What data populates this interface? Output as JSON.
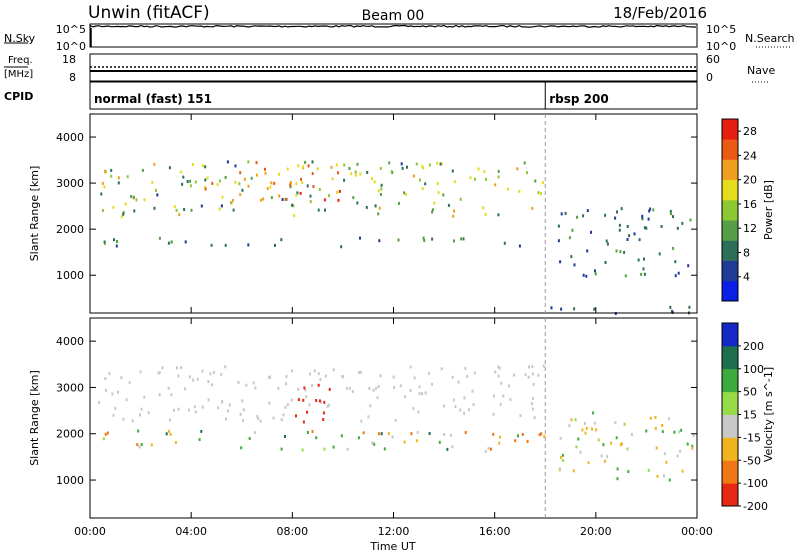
{
  "header": {
    "station": "Unwin (fitACF)",
    "beam": "Beam 00",
    "date": "18/Feb/2016"
  },
  "panel_nsky": {
    "label": "N.Sky",
    "right_label": "N.Search",
    "left_ticks": [
      "10^5",
      "10^0"
    ],
    "right_ticks": [
      "10^5",
      "10^0"
    ]
  },
  "panel_freq": {
    "left_label_1": "Freq.",
    "left_label_2": "[MHz]",
    "right_label": "Nave",
    "left_ticks": [
      "18",
      "8"
    ],
    "right_ticks": [
      "60",
      "0"
    ]
  },
  "panel_cpid": {
    "label": "CPID",
    "modes": [
      {
        "name": "normal (fast) 151",
        "start_hour": 0
      },
      {
        "name": "rbsp 200",
        "start_hour": 18
      }
    ]
  },
  "chart_data": [
    {
      "type": "heatmap",
      "title": "Power",
      "ylabel": "Slant Range [km]",
      "xlabel": "Time UT",
      "ylim": [
        180,
        4500
      ],
      "yticks": [
        "1000",
        "2000",
        "3000",
        "4000"
      ],
      "xticks": [
        "00:00",
        "04:00",
        "08:00",
        "12:00",
        "16:00",
        "20:00",
        "00:00"
      ],
      "x_range_hours": [
        0,
        24
      ],
      "colorbar": {
        "label": "Power [dB]",
        "ticks": [
          "4",
          "8",
          "12",
          "16",
          "20",
          "24",
          "28"
        ],
        "range": [
          0,
          30
        ],
        "colors": [
          "#0a1ee6",
          "#1e3c96",
          "#2d6e5a",
          "#55a046",
          "#8cc832",
          "#e6dc1e",
          "#f0a01e",
          "#eb5a14",
          "#e61e0f"
        ]
      },
      "features": [
        {
          "name": "upper echo band",
          "t": [
            0.3,
            17.9
          ],
          "range_km": [
            2300,
            3500
          ],
          "power_db": [
            6,
            22
          ]
        },
        {
          "name": "strong echo arc",
          "t": [
            4.5,
            10.2
          ],
          "range_km": [
            2650,
            3500
          ],
          "power_db": [
            18,
            28
          ]
        },
        {
          "name": "near range band",
          "t": [
            0.5,
            18
          ],
          "range_km": [
            1650,
            1850
          ],
          "power_db": [
            4,
            14
          ]
        },
        {
          "name": "descending echoes",
          "t": [
            18.5,
            23.9
          ],
          "range_km": [
            1000,
            2500
          ],
          "power_db": [
            4,
            12
          ]
        },
        {
          "name": "ground clutter",
          "t": [
            18,
            24
          ],
          "range_km": [
            180,
            400
          ],
          "power_db": [
            4,
            10
          ]
        }
      ]
    },
    {
      "type": "heatmap",
      "title": "Velocity",
      "ylabel": "Slant Range [km]",
      "xlabel": "Time UT",
      "ylim": [
        180,
        4500
      ],
      "yticks": [
        "1000",
        "2000",
        "3000",
        "4000"
      ],
      "xticks": [
        "00:00",
        "04:00",
        "08:00",
        "12:00",
        "16:00",
        "20:00",
        "00:00"
      ],
      "x_range_hours": [
        0,
        24
      ],
      "colorbar": {
        "label": "Velocity [m s^-1]",
        "ticks": [
          "200",
          "100",
          "50",
          "15",
          "-15",
          "-50",
          "-100",
          "-200"
        ],
        "range": [
          -250,
          250
        ],
        "colors": [
          "#1428c8",
          "#1e6e50",
          "#3caa3c",
          "#96dc46",
          "#c8c8c8",
          "#f0b41e",
          "#f07814",
          "#e62814"
        ]
      },
      "features": [
        {
          "name": "ground scatter band",
          "t": [
            0.3,
            17.9
          ],
          "range_km": [
            2300,
            3500
          ],
          "velocity_ms": [
            -15,
            15
          ]
        },
        {
          "name": "negative velocity patch",
          "t": [
            7.8,
            9.5
          ],
          "range_km": [
            2100,
            3100
          ],
          "velocity_ms": [
            -250,
            -150
          ]
        },
        {
          "name": "near range echoes",
          "t": [
            0.5,
            18
          ],
          "range_km": [
            1650,
            2100
          ],
          "velocity_ms": [
            -100,
            100
          ]
        },
        {
          "name": "late descending echoes",
          "t": [
            18.5,
            23.9
          ],
          "range_km": [
            1000,
            2500
          ],
          "velocity_ms": [
            -50,
            50
          ]
        }
      ]
    }
  ]
}
